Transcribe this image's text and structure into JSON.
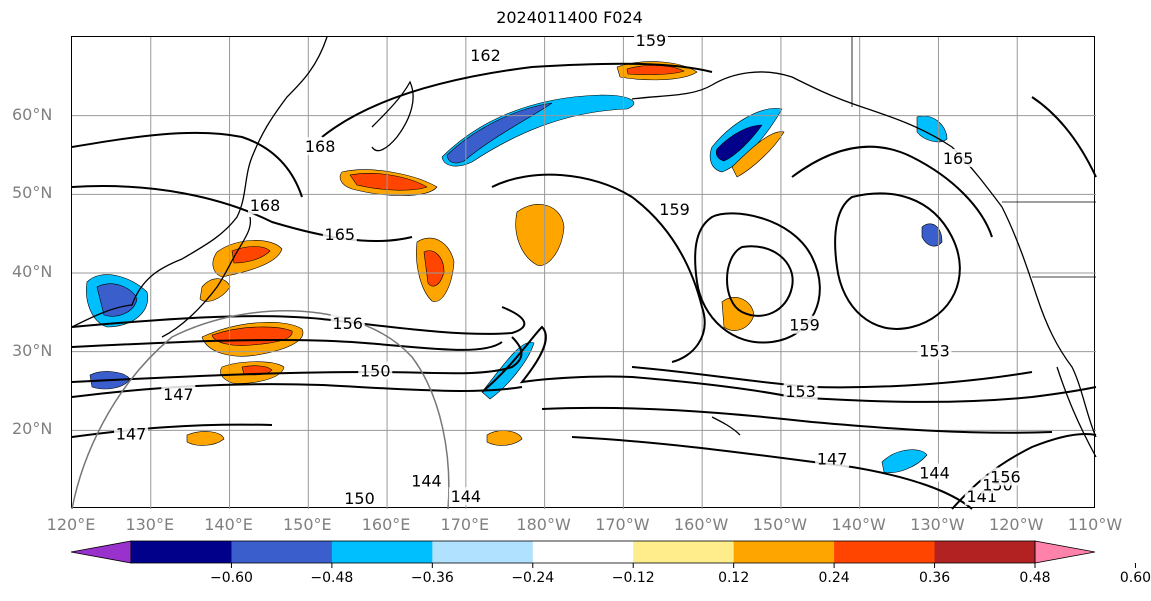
{
  "title": "2024011400 F024",
  "lat_labels": [
    {
      "text": "60°N",
      "lat": 60
    },
    {
      "text": "50°N",
      "lat": 50
    },
    {
      "text": "40°N",
      "lat": 40
    },
    {
      "text": "30°N",
      "lat": 30
    },
    {
      "text": "20°N",
      "lat": 20
    }
  ],
  "lon_labels": [
    "120°E",
    "130°E",
    "140°E",
    "150°E",
    "160°E",
    "170°E",
    "180°W",
    "170°W",
    "160°W",
    "150°W",
    "140°W",
    "130°W",
    "120°W",
    "110°W"
  ],
  "colorbar": {
    "colors": [
      "#9932cc",
      "#00008b",
      "#3a5fcd",
      "#00bfff",
      "#b0e2ff",
      "#ffffff",
      "#ffec8b",
      "#ffa500",
      "#ff4500",
      "#b22222",
      "#ff82ab"
    ],
    "ticks": [
      "−0.60",
      "−0.48",
      "−0.36",
      "−0.24",
      "−0.12",
      "0.12",
      "0.24",
      "0.36",
      "0.48",
      "0.60"
    ],
    "tick_values": [
      -0.6,
      -0.48,
      -0.36,
      -0.24,
      -0.12,
      0.12,
      0.24,
      0.36,
      0.48,
      0.6
    ]
  },
  "contour_labels": [
    {
      "text": "162",
      "lon": 172.5,
      "lat": 67.6
    },
    {
      "text": "159",
      "lon": 193.5,
      "lat": 69.5
    },
    {
      "text": "168",
      "lon": 151.5,
      "lat": 56.0
    },
    {
      "text": "168",
      "lon": 144.5,
      "lat": 48.5
    },
    {
      "text": "165",
      "lon": 154.0,
      "lat": 44.8
    },
    {
      "text": "159",
      "lon": 196.5,
      "lat": 48.0
    },
    {
      "text": "165",
      "lon": 232.5,
      "lat": 54.5
    },
    {
      "text": "156",
      "lon": 155.0,
      "lat": 33.5
    },
    {
      "text": "150",
      "lon": 158.5,
      "lat": 27.5
    },
    {
      "text": "147",
      "lon": 133.5,
      "lat": 24.5
    },
    {
      "text": "147",
      "lon": 127.5,
      "lat": 19.5
    },
    {
      "text": "159",
      "lon": 213.0,
      "lat": 33.3
    },
    {
      "text": "153",
      "lon": 212.5,
      "lat": 24.9
    },
    {
      "text": "153",
      "lon": 229.5,
      "lat": 30.0
    },
    {
      "text": "147",
      "lon": 216.5,
      "lat": 16.3
    },
    {
      "text": "144",
      "lon": 229.5,
      "lat": 14.5
    },
    {
      "text": "144",
      "lon": 165.0,
      "lat": 13.5
    },
    {
      "text": "144",
      "lon": 170.0,
      "lat": 11.5
    },
    {
      "text": "150",
      "lon": 156.5,
      "lat": 11.3
    },
    {
      "text": "141",
      "lon": 235.5,
      "lat": 11.5
    },
    {
      "text": "150",
      "lon": 237.5,
      "lat": 13.0
    },
    {
      "text": "156",
      "lon": 238.5,
      "lat": 14.0
    }
  ]
}
